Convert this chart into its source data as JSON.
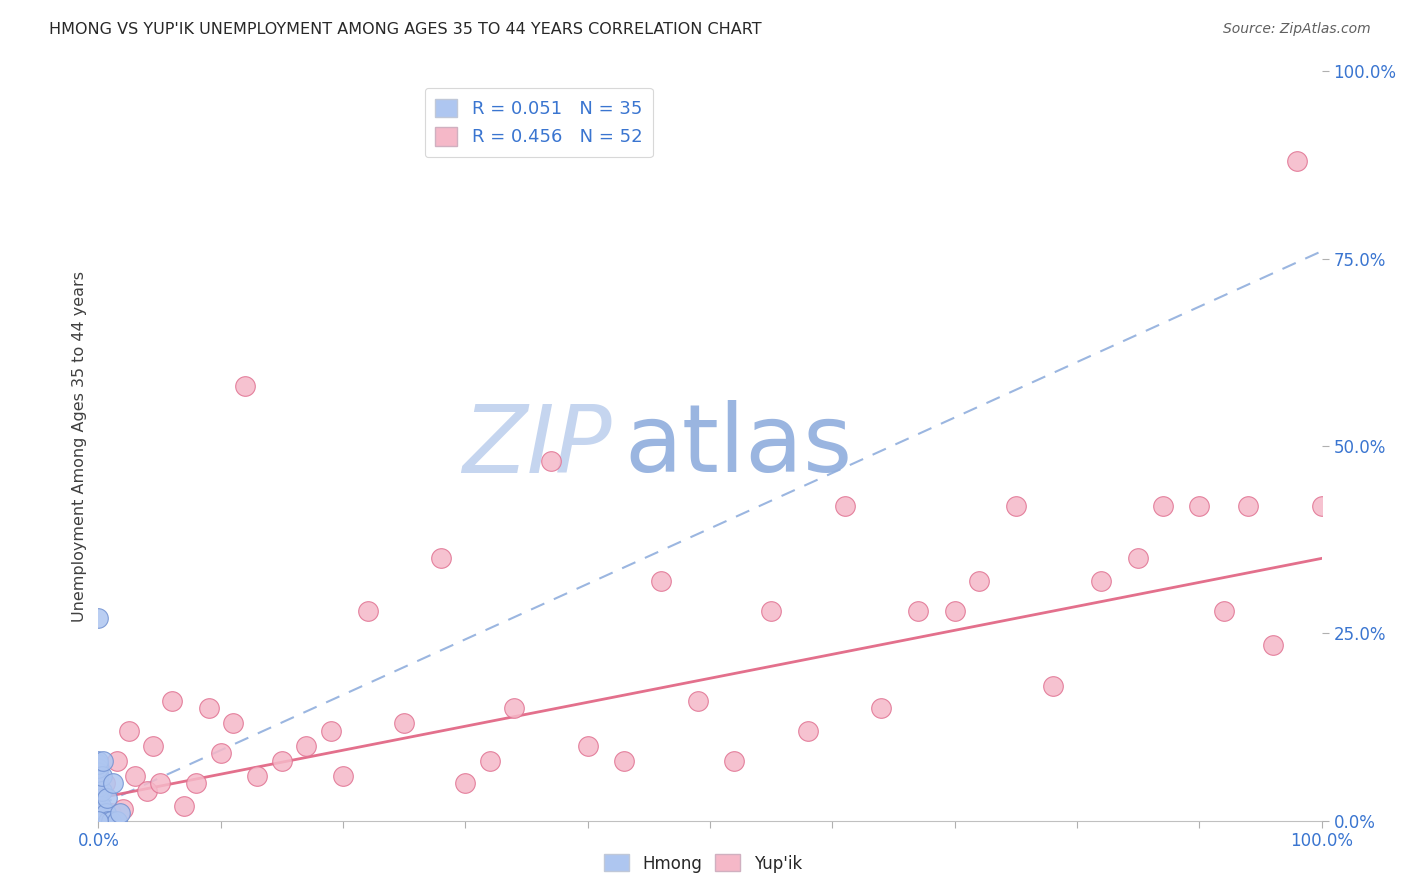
{
  "title": "HMONG VS YUP'IK UNEMPLOYMENT AMONG AGES 35 TO 44 YEARS CORRELATION CHART",
  "source": "Source: ZipAtlas.com",
  "ylabel": "Unemployment Among Ages 35 to 44 years",
  "watermark_zip": "ZIP",
  "watermark_atlas": "atlas",
  "hmong_R": 0.051,
  "hmong_N": 35,
  "yupik_R": 0.456,
  "yupik_N": 52,
  "hmong_color": "#aec6f0",
  "hmong_edge_color": "#7090d0",
  "hmong_line_color": "#90aedd",
  "yupik_color": "#f5b8c8",
  "yupik_edge_color": "#e07090",
  "yupik_line_color": "#e06080",
  "hmong_x": [
    0.0,
    0.0,
    0.0,
    0.0,
    0.0,
    0.0,
    0.0,
    0.0,
    0.0,
    0.0,
    0.0,
    0.0,
    0.0,
    0.0,
    0.0,
    0.0,
    0.0,
    0.0,
    0.0,
    0.0,
    0.002,
    0.002,
    0.003,
    0.003,
    0.004,
    0.005,
    0.006,
    0.007,
    0.008,
    0.01,
    0.012,
    0.015,
    0.018,
    0.0,
    0.0
  ],
  "hmong_y": [
    0.0,
    0.0,
    0.0,
    0.01,
    0.01,
    0.015,
    0.02,
    0.025,
    0.03,
    0.035,
    0.04,
    0.045,
    0.05,
    0.055,
    0.06,
    0.065,
    0.07,
    0.075,
    0.08,
    0.0,
    0.0,
    0.02,
    0.04,
    0.06,
    0.08,
    0.0,
    0.01,
    0.03,
    0.0,
    0.0,
    0.05,
    0.0,
    0.01,
    0.27,
    0.0
  ],
  "yupik_x": [
    0.0,
    0.005,
    0.01,
    0.015,
    0.02,
    0.025,
    0.03,
    0.04,
    0.045,
    0.05,
    0.06,
    0.07,
    0.08,
    0.09,
    0.1,
    0.11,
    0.12,
    0.13,
    0.15,
    0.17,
    0.19,
    0.2,
    0.22,
    0.25,
    0.28,
    0.3,
    0.32,
    0.34,
    0.37,
    0.4,
    0.43,
    0.46,
    0.49,
    0.52,
    0.55,
    0.58,
    0.61,
    0.64,
    0.67,
    0.7,
    0.72,
    0.75,
    0.78,
    0.82,
    0.85,
    0.87,
    0.9,
    0.92,
    0.94,
    0.96,
    0.98,
    1.0
  ],
  "yupik_y": [
    0.02,
    0.05,
    0.01,
    0.08,
    0.015,
    0.12,
    0.06,
    0.04,
    0.1,
    0.05,
    0.16,
    0.02,
    0.05,
    0.15,
    0.09,
    0.13,
    0.58,
    0.06,
    0.08,
    0.1,
    0.12,
    0.06,
    0.28,
    0.13,
    0.35,
    0.05,
    0.08,
    0.15,
    0.48,
    0.1,
    0.08,
    0.32,
    0.16,
    0.08,
    0.28,
    0.12,
    0.42,
    0.15,
    0.28,
    0.28,
    0.32,
    0.42,
    0.18,
    0.32,
    0.35,
    0.42,
    0.42,
    0.28,
    0.42,
    0.235,
    0.88,
    0.42
  ],
  "hmong_trend": [
    0.02,
    0.76
  ],
  "yupik_trend": [
    0.03,
    0.35
  ],
  "xlim": [
    0.0,
    1.0
  ],
  "ylim": [
    0.0,
    1.0
  ],
  "xtick_positions": [
    0.0,
    0.1,
    0.2,
    0.3,
    0.4,
    0.5,
    0.6,
    0.7,
    0.8,
    0.9,
    1.0
  ],
  "xtick_labels_show": {
    "0.0": "0.0%",
    "1.0": "100.0%"
  },
  "yticks_right": [
    0.0,
    0.25,
    0.5,
    0.75,
    1.0
  ],
  "yticklabels_right": [
    "0.0%",
    "25.0%",
    "50.0%",
    "75.0%",
    "100.0%"
  ],
  "grid_color": "#c8d4e8",
  "background_color": "#ffffff",
  "title_color": "#282828",
  "axis_label_color": "#404040",
  "tick_label_color": "#3a75d0",
  "watermark_color": "#c5d5ef",
  "watermark_atlas_color": "#9ab5e0"
}
